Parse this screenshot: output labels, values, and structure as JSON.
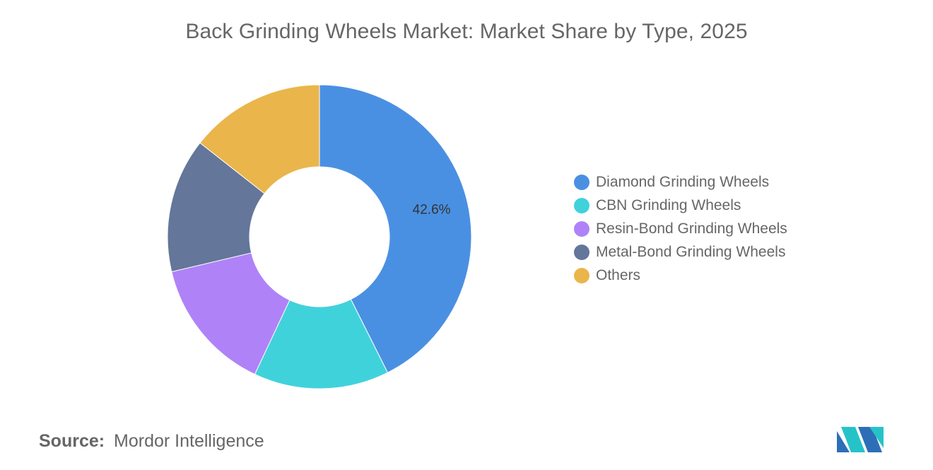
{
  "title": "Back Grinding Wheels Market: Market Share by Type, 2025",
  "source": {
    "label": "Source:",
    "value": "Mordor Intelligence"
  },
  "logo": {
    "icon": "mordor-intelligence-logo-icon"
  },
  "chart_data": {
    "type": "pie",
    "donut": true,
    "title": "Back Grinding Wheels Market: Market Share by Type, 2025",
    "legend_position": "right",
    "series": [
      {
        "name": "Diamond Grinding Wheels",
        "value": 42.6,
        "color": "#4a90e2",
        "label": "42.6%"
      },
      {
        "name": "CBN Grinding Wheels",
        "value": 14.4,
        "color": "#40d2db",
        "label": ""
      },
      {
        "name": "Resin-Bond Grinding Wheels",
        "value": 14.3,
        "color": "#b082f8",
        "label": ""
      },
      {
        "name": "Metal-Bond Grinding Wheels",
        "value": 14.3,
        "color": "#647699",
        "label": ""
      },
      {
        "name": "Others",
        "value": 14.4,
        "color": "#eab54b",
        "label": ""
      }
    ],
    "start_angle_deg": 0,
    "direction": "clockwise-from-top"
  }
}
